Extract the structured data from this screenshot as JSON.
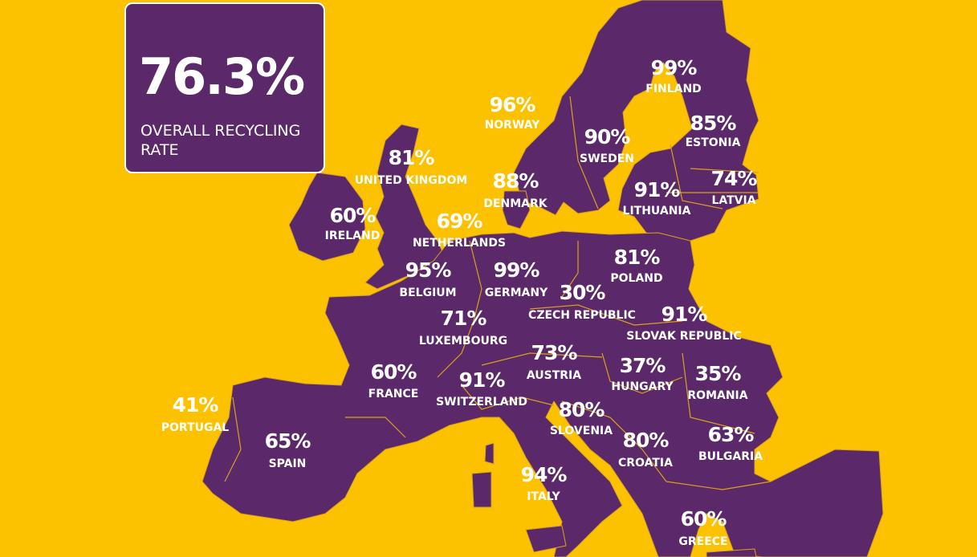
{
  "summary": {
    "value": "76.3%",
    "label": "OVERALL RECYCLING RATE"
  },
  "colors": {
    "background": "#fcc200",
    "land": "#5b2869",
    "text": "#ffffff",
    "borders": "#d9a21a"
  },
  "countries": [
    {
      "name": "UNITED KINGDOM",
      "rate": "81%"
    },
    {
      "name": "IRELAND",
      "rate": "60%"
    },
    {
      "name": "NORWAY",
      "rate": "96%"
    },
    {
      "name": "SWEDEN",
      "rate": "90%"
    },
    {
      "name": "FINLAND",
      "rate": "99%"
    },
    {
      "name": "ESTONIA",
      "rate": "85%"
    },
    {
      "name": "LATVIA",
      "rate": "74%"
    },
    {
      "name": "LITHUANIA",
      "rate": "91%"
    },
    {
      "name": "DENMARK",
      "rate": "88%"
    },
    {
      "name": "NETHERLANDS",
      "rate": "69%"
    },
    {
      "name": "BELGIUM",
      "rate": "95%"
    },
    {
      "name": "GERMANY",
      "rate": "99%"
    },
    {
      "name": "POLAND",
      "rate": "81%"
    },
    {
      "name": "CZECH REPUBLIC",
      "rate": "30%"
    },
    {
      "name": "SLOVAK REPUBLIC",
      "rate": "91%"
    },
    {
      "name": "LUXEMBOURG",
      "rate": "71%"
    },
    {
      "name": "AUSTRIA",
      "rate": "73%"
    },
    {
      "name": "HUNGARY",
      "rate": "37%"
    },
    {
      "name": "ROMANIA",
      "rate": "35%"
    },
    {
      "name": "FRANCE",
      "rate": "60%"
    },
    {
      "name": "SWITZERLAND",
      "rate": "91%"
    },
    {
      "name": "SLOVENIA",
      "rate": "80%"
    },
    {
      "name": "CROATIA",
      "rate": "80%"
    },
    {
      "name": "BULGARIA",
      "rate": "63%"
    },
    {
      "name": "PORTUGAL",
      "rate": "41%"
    },
    {
      "name": "SPAIN",
      "rate": "65%"
    },
    {
      "name": "ITALY",
      "rate": "94%"
    },
    {
      "name": "GREECE",
      "rate": "60%"
    }
  ]
}
